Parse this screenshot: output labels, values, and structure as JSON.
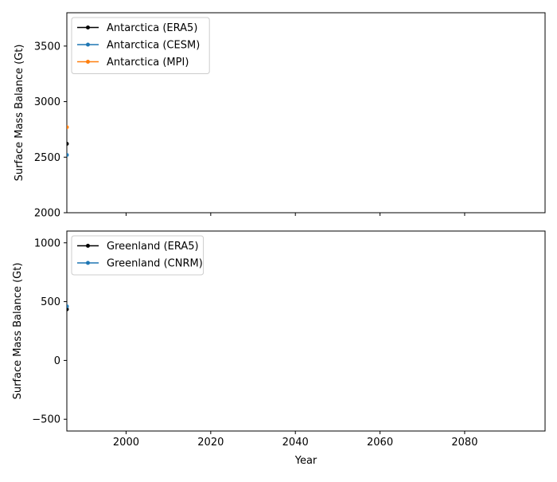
{
  "chart_data": [
    {
      "type": "line",
      "title": "",
      "xlabel": "",
      "ylabel": "Surface Mass Balance (Gt)",
      "xlim": [
        1986,
        2099
      ],
      "ylim": [
        2000,
        3800
      ],
      "xticks": [
        2000,
        2020,
        2040,
        2060,
        2080
      ],
      "xtick_labels_visible": false,
      "yticks": [
        2000,
        2500,
        3000,
        3500
      ],
      "ytick_labels": [
        "2000",
        "2500",
        "3000",
        "3500"
      ],
      "grid": false,
      "legend_position": "top-left",
      "series": [
        {
          "name": "Antarctica (ERA5)",
          "color": "#000000",
          "x": [
            1986
          ],
          "y": [
            2620
          ]
        },
        {
          "name": "Antarctica (CESM)",
          "color": "#1f77b4",
          "x": [
            1986
          ],
          "y": [
            2520
          ]
        },
        {
          "name": "Antarctica (MPI)",
          "color": "#ff7f0e",
          "x": [
            1986
          ],
          "y": [
            2770
          ]
        }
      ]
    },
    {
      "type": "line",
      "title": "",
      "xlabel": "Year",
      "ylabel": "Surface Mass Balance (Gt)",
      "xlim": [
        1986,
        2099
      ],
      "ylim": [
        -600,
        1100
      ],
      "xticks": [
        2000,
        2020,
        2040,
        2060,
        2080
      ],
      "xtick_labels": [
        "2000",
        "2020",
        "2040",
        "2060",
        "2080"
      ],
      "xtick_labels_visible": true,
      "yticks": [
        -500,
        0,
        500,
        1000
      ],
      "ytick_labels": [
        "−500",
        "0",
        "500",
        "1000"
      ],
      "grid": false,
      "legend_position": "top-left",
      "series": [
        {
          "name": "Greenland (ERA5)",
          "color": "#000000",
          "x": [
            1986
          ],
          "y": [
            435
          ]
        },
        {
          "name": "Greenland (CNRM)",
          "color": "#1f77b4",
          "x": [
            1986
          ],
          "y": [
            460
          ]
        }
      ]
    }
  ]
}
